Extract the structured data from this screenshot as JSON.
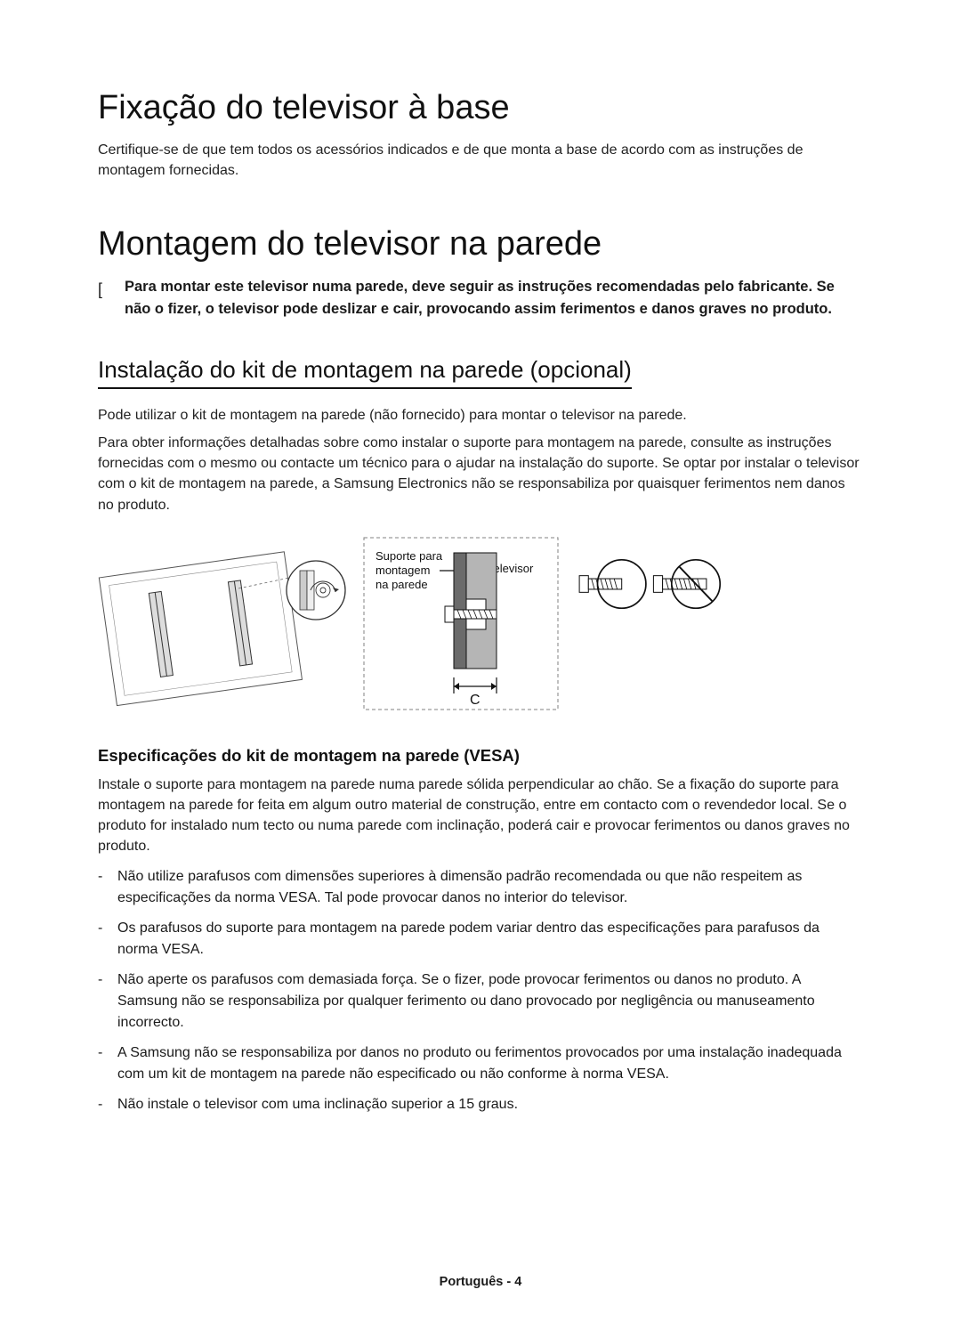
{
  "section1": {
    "title": "Fixação do televisor à base",
    "body": "Certifique-se de que tem todos os acessórios indicados e de que monta a base de acordo com as instruções de montagem fornecidas."
  },
  "section2": {
    "title": "Montagem do televisor na parede",
    "warning_marker": "[",
    "warning": "Para montar este televisor numa parede, deve seguir as instruções recomendadas pelo fabricante. Se não o fizer, o televisor pode deslizar e cair, provocando assim ferimentos e danos graves no produto."
  },
  "install": {
    "title": "Instalação do kit de montagem na parede (opcional)",
    "p1": "Pode utilizar o kit de montagem na parede (não fornecido) para montar o televisor na parede.",
    "p2": "Para obter informações detalhadas sobre como instalar o suporte para montagem na parede, consulte as instruções fornecidas com o mesmo ou contacte um técnico para o ajudar na instalação do suporte. Se optar por instalar o televisor com o kit de montagem na parede, a Samsung Electronics não se responsabiliza por quaisquer ferimentos nem danos no produto."
  },
  "diagram": {
    "label_mount_l1": "Suporte para",
    "label_mount_l2": "montagem",
    "label_mount_l3": "na parede",
    "label_tv": "Televisor",
    "label_c": "C"
  },
  "specs": {
    "title": "Especificações do kit de montagem na parede (VESA)",
    "intro": "Instale o suporte para montagem na parede numa parede sólida perpendicular ao chão. Se a fixação do suporte para montagem na parede for feita em algum outro material de construção, entre em contacto com o revendedor local. Se o produto for instalado num tecto ou numa parede com inclinação, poderá cair e provocar ferimentos ou danos graves no produto.",
    "items": [
      "Não utilize parafusos com dimensões superiores à dimensão padrão recomendada ou que não respeitem as especificações da norma VESA. Tal pode provocar danos no interior do televisor.",
      "Os parafusos do suporte para montagem na parede podem variar dentro das especificações para parafusos da norma VESA.",
      "Não aperte os parafusos com demasiada força. Se o fizer, pode provocar ferimentos ou danos no produto. A Samsung não se responsabiliza por qualquer ferimento ou dano provocado por negligência ou manuseamento incorrecto.",
      "A Samsung não se responsabiliza por danos no produto ou ferimentos provocados por uma instalação inadequada com um kit de montagem na parede não especificado ou não conforme à norma VESA.",
      "Não instale o televisor com uma inclinação superior a 15 graus."
    ]
  },
  "footer": "Português - 4",
  "colors": {
    "text": "#1a1a1a",
    "line": "#000000",
    "dashed": "#808080",
    "fill_light": "#ffffff",
    "fill_gray": "#bfbfbf"
  }
}
